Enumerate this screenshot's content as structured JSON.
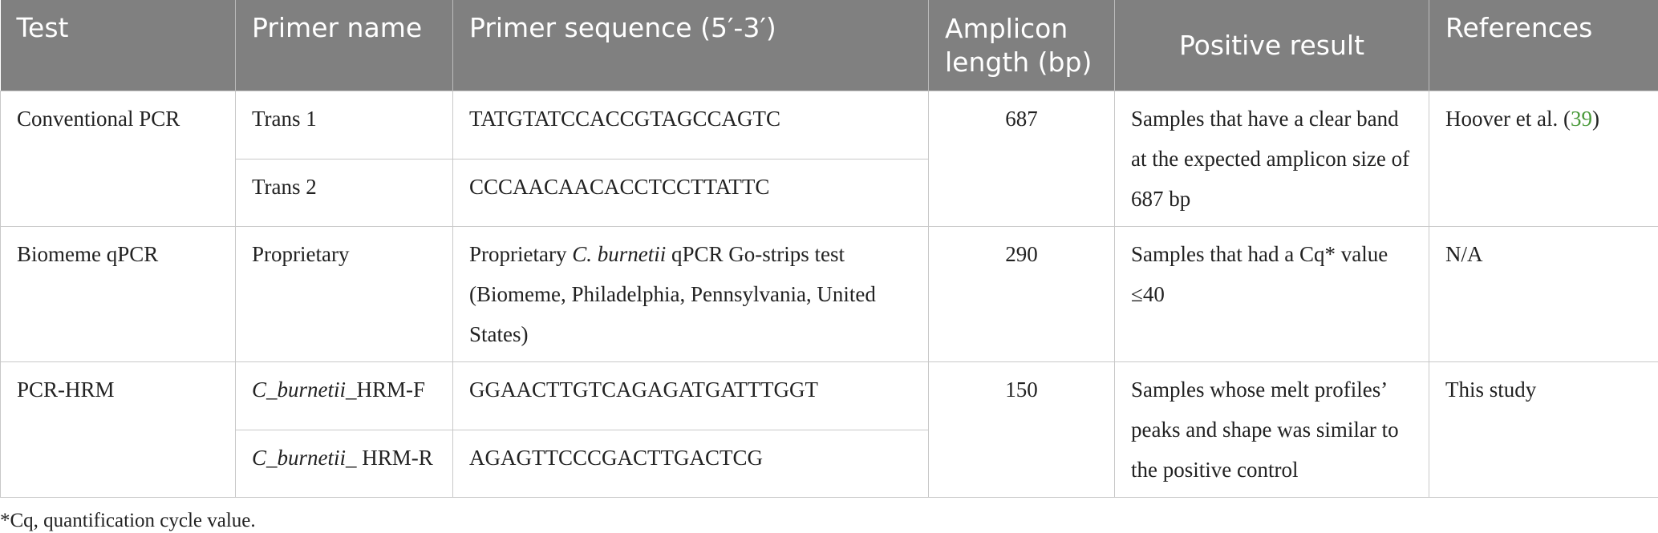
{
  "table": {
    "header": [
      "Test",
      "Primer name",
      "Primer sequence (5′-3′)",
      "Amplicon length (bp)",
      "Positive result",
      "References"
    ],
    "groups": [
      {
        "test": "Conventional PCR",
        "primers": [
          {
            "name": [
              {
                "text": "Trans 1"
              }
            ],
            "sequence": [
              {
                "text": "TATGTATCCACCGTAGCCAGTC"
              }
            ]
          },
          {
            "name": [
              {
                "text": "Trans 2"
              }
            ],
            "sequence": [
              {
                "text": "CCCAACAACACCTCCTTATTC"
              }
            ]
          }
        ],
        "amplicon": 687,
        "result": "Samples that have a clear band at the expected amplicon size of 687 bp",
        "reference": [
          {
            "text": "Hoover et al. ("
          },
          {
            "text": "39",
            "link": true
          },
          {
            "text": ")"
          }
        ]
      },
      {
        "test": "Biomeme qPCR",
        "primers": [
          {
            "name": [
              {
                "text": "Proprietary"
              }
            ],
            "sequence": [
              {
                "text": "Proprietary "
              },
              {
                "text": "C. burnetii",
                "italic": true
              },
              {
                "text": " qPCR Go-strips test (Biomeme, Philadelphia, Pennsylvania, United States)"
              }
            ]
          }
        ],
        "amplicon": 290,
        "result": "Samples that had a Cq* value ≤40",
        "reference": [
          {
            "text": "N/A"
          }
        ]
      },
      {
        "test": "PCR-HRM",
        "primers": [
          {
            "name": [
              {
                "text": "C_burnetii",
                "italic": true
              },
              {
                "text": "_HRM-F"
              }
            ],
            "sequence": [
              {
                "text": "GGAACTTGTCAGAGATGATTTGGT"
              }
            ]
          },
          {
            "name": [
              {
                "text": "C_burnetii",
                "italic": true
              },
              {
                "text": "_ HRM-R"
              }
            ],
            "sequence": [
              {
                "text": "AGAGTTCCCGACTTGACTCG"
              }
            ]
          }
        ],
        "amplicon": 150,
        "result": "Samples whose melt profiles’ peaks and shape was similar to the positive control",
        "reference": [
          {
            "text": "This study"
          }
        ]
      }
    ]
  },
  "footnote": "*Cq, quantification cycle value."
}
